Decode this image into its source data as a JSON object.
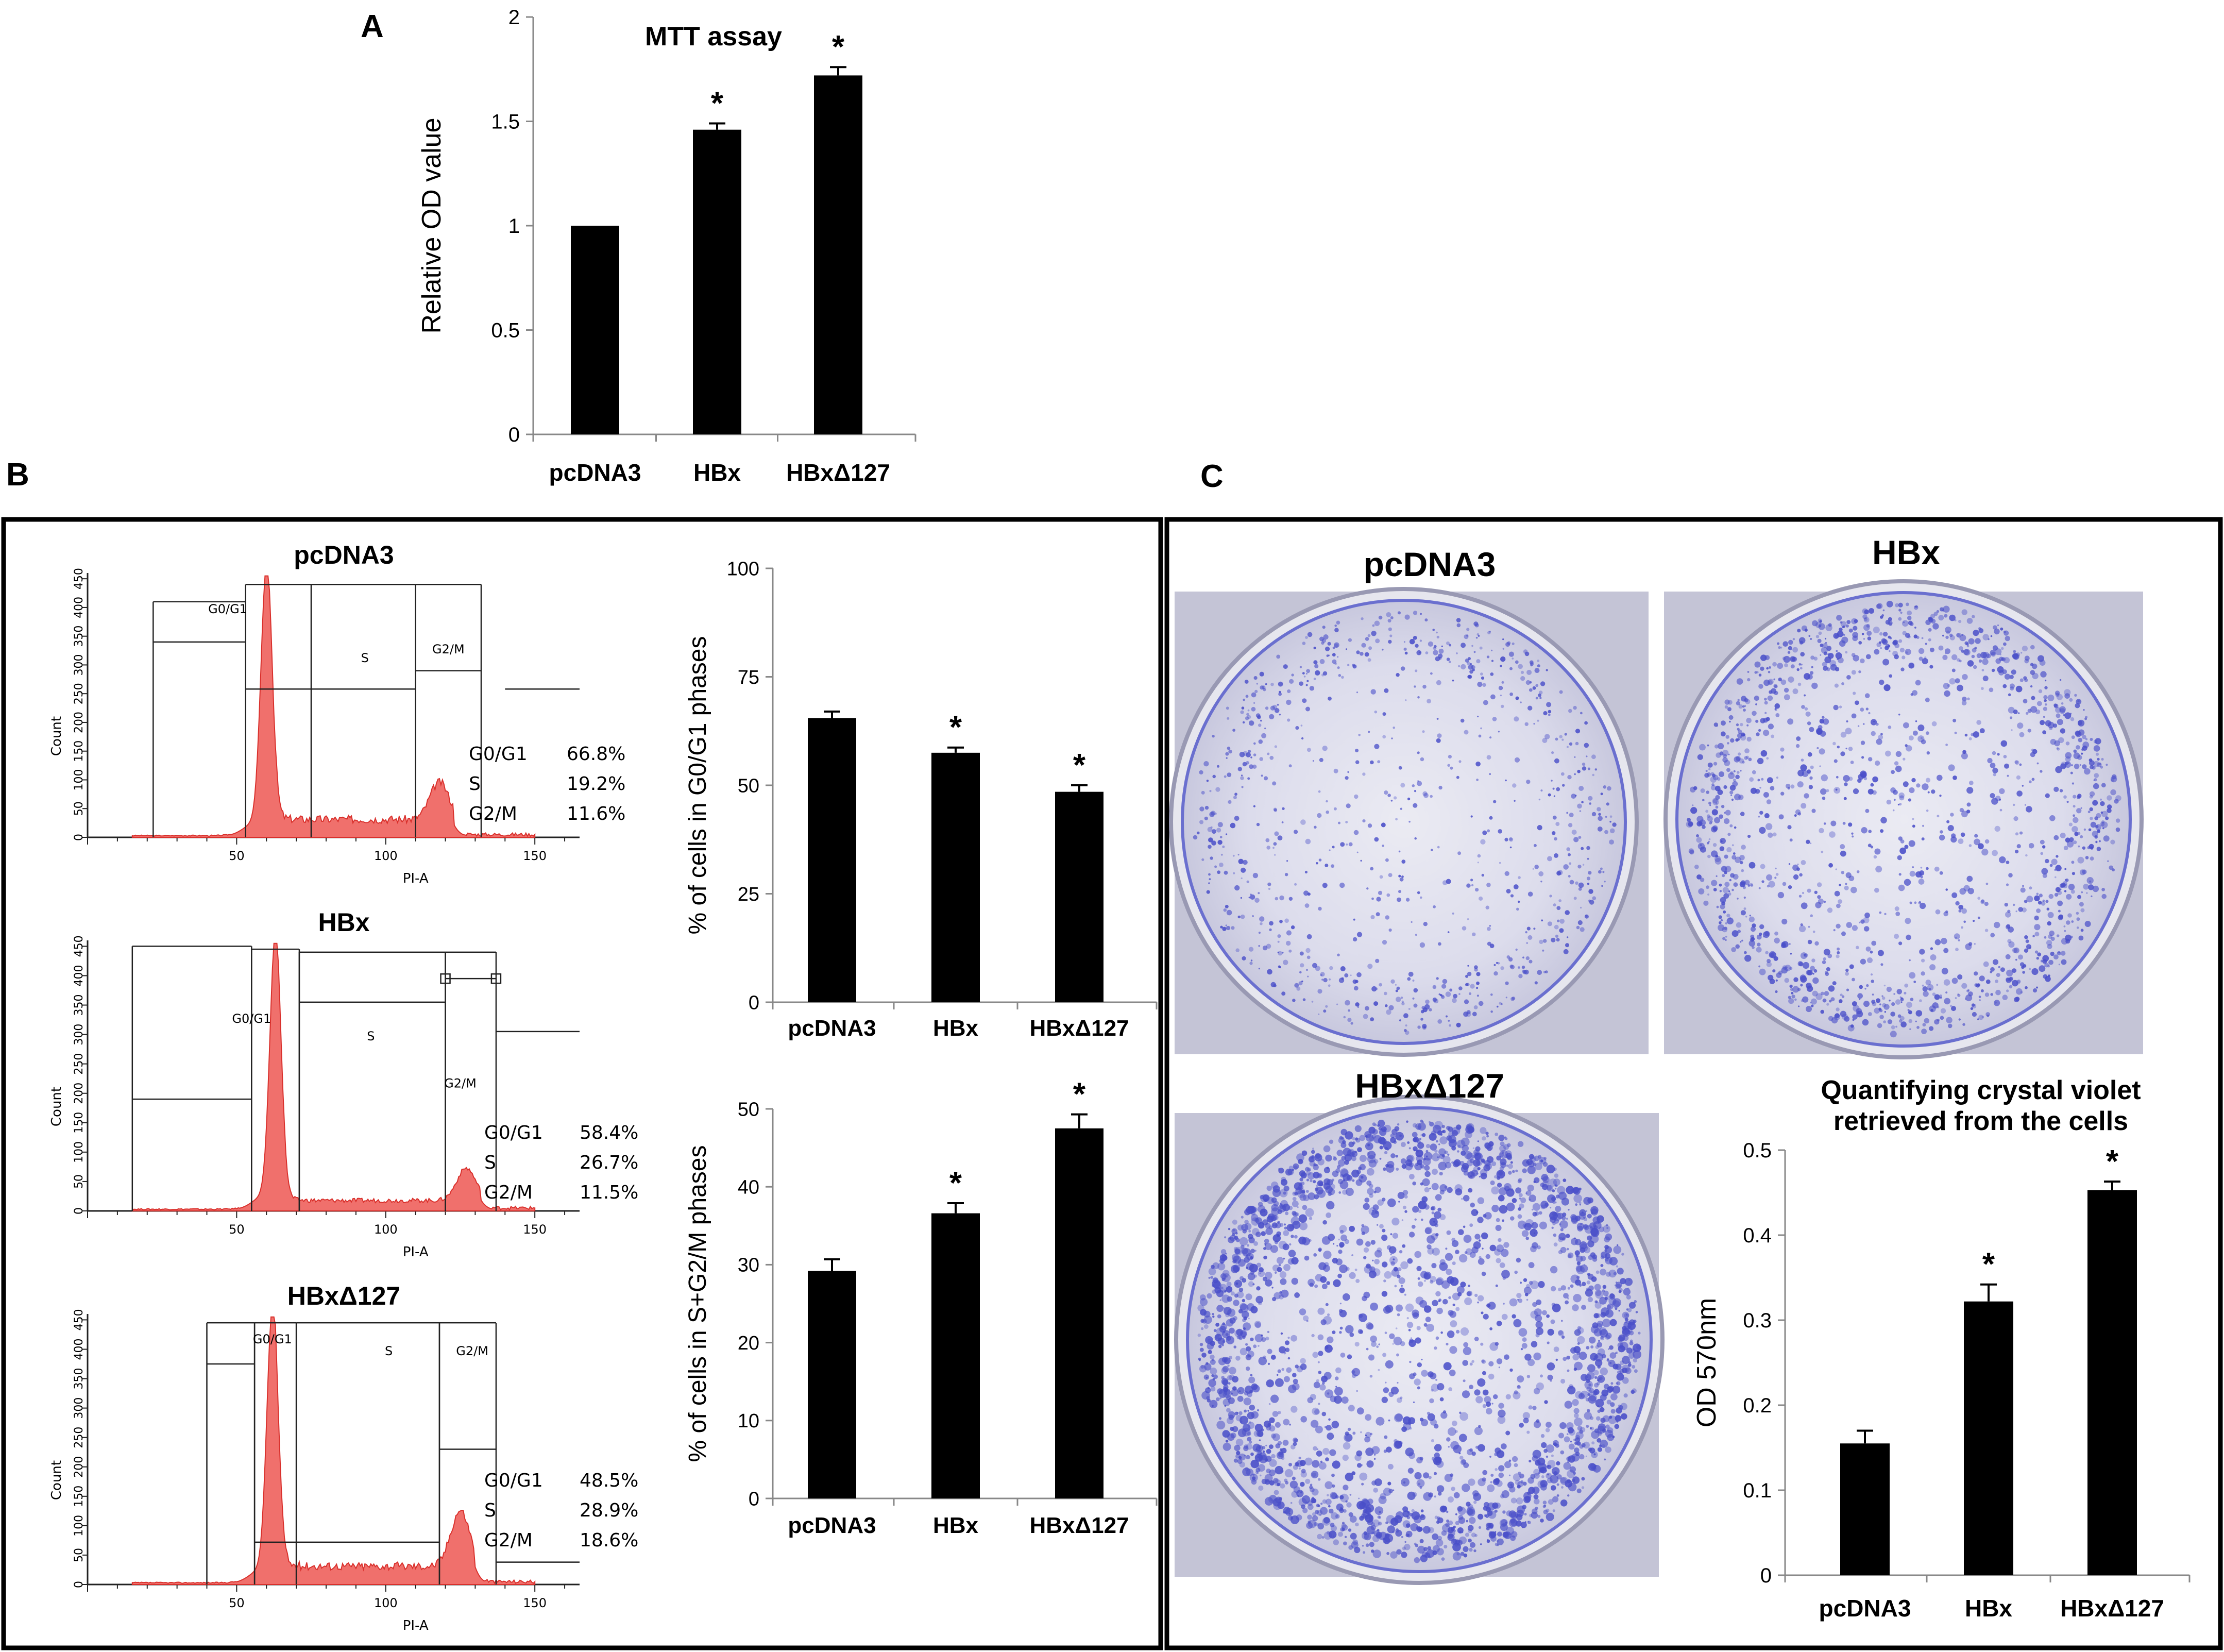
{
  "panels": {
    "a": "A",
    "b": "B",
    "c": "C"
  },
  "mtt": {
    "title": "MTT assay",
    "ylabel": "Relative OD value",
    "yticks": [
      "0",
      "0.5",
      "1",
      "1.5",
      "2"
    ]
  },
  "g0g1": {
    "ylabel": "% of cells in G0/G1 phases",
    "yticks": [
      "0",
      "25",
      "50",
      "75",
      "100"
    ]
  },
  "sg2m": {
    "ylabel": "% of cells in S+G2/M phases",
    "yticks": [
      "0",
      "10",
      "20",
      "30",
      "40",
      "50"
    ]
  },
  "crystal": {
    "title_line1": "Quantifying crystal violet",
    "title_line2": "retrieved from the cells",
    "ylabel": "OD 570nm",
    "yticks": [
      "0",
      "0.1",
      "0.2",
      "0.3",
      "0.4",
      "0.5"
    ]
  },
  "flow": {
    "count_label": "Count",
    "axis_label": "PI-A",
    "yticks": [
      "0",
      "50",
      "100",
      "150",
      "200",
      "250",
      "300",
      "350",
      "400",
      "450"
    ],
    "xticks": [
      "50",
      "100",
      "150"
    ],
    "gate_g0g1": "G0/G1",
    "gate_s": "S",
    "gate_g2m": "G2/M",
    "histograms": [
      {
        "title": "pcDNA3",
        "stats": [
          [
            "G0/G1",
            "66.8%"
          ],
          [
            "S",
            "19.2%"
          ],
          [
            "G2/M",
            "11.6%"
          ]
        ]
      },
      {
        "title": "HBx",
        "stats": [
          [
            "G0/G1",
            "58.4%"
          ],
          [
            "S",
            "26.7%"
          ],
          [
            "G2/M",
            "11.5%"
          ]
        ]
      },
      {
        "title": "HBxΔ127",
        "stats": [
          [
            "G0/G1",
            "48.5%"
          ],
          [
            "S",
            "28.9%"
          ],
          [
            "G2/M",
            "18.6%"
          ]
        ]
      }
    ]
  },
  "wells": {
    "labels": [
      "pcDNA3",
      "HBx",
      "HBxΔ127"
    ]
  },
  "colors": {
    "bar": "#000000",
    "histogram_fill": "#f0706c",
    "histogram_edge": "#d9302c",
    "crystal_violet": "#4a4fc9"
  },
  "chart_data": [
    {
      "type": "bar",
      "title": "MTT assay",
      "ylabel": "Relative OD value",
      "categories": [
        "pcDNA3",
        "HBx",
        "HBxΔ127"
      ],
      "values": [
        1.0,
        1.46,
        1.72
      ],
      "errors": [
        0.0,
        0.03,
        0.04
      ],
      "significance": [
        "",
        "*",
        "*"
      ],
      "ylim": [
        0,
        2
      ]
    },
    {
      "type": "bar",
      "ylabel": "% of cells in G0/G1 phases",
      "categories": [
        "pcDNA3",
        "HBx",
        "HBxΔ127"
      ],
      "values": [
        65.5,
        57.5,
        48.5
      ],
      "errors": [
        1.5,
        1.2,
        1.5
      ],
      "significance": [
        "",
        "*",
        "*"
      ],
      "ylim": [
        0,
        100
      ]
    },
    {
      "type": "bar",
      "ylabel": "% of cells in S+G2/M phases",
      "categories": [
        "pcDNA3",
        "HBx",
        "HBxΔ127"
      ],
      "values": [
        29.2,
        36.6,
        47.5
      ],
      "errors": [
        1.5,
        1.3,
        1.8
      ],
      "significance": [
        "",
        "*",
        "*"
      ],
      "ylim": [
        0,
        50
      ]
    },
    {
      "type": "bar",
      "title": "Quantifying crystal violet retrieved from the cells",
      "ylabel": "OD 570nm",
      "categories": [
        "pcDNA3",
        "HBx",
        "HBxΔ127"
      ],
      "values": [
        0.155,
        0.322,
        0.453
      ],
      "errors": [
        0.015,
        0.02,
        0.01
      ],
      "significance": [
        "",
        "*",
        "*"
      ],
      "ylim": [
        0,
        0.5
      ]
    }
  ]
}
